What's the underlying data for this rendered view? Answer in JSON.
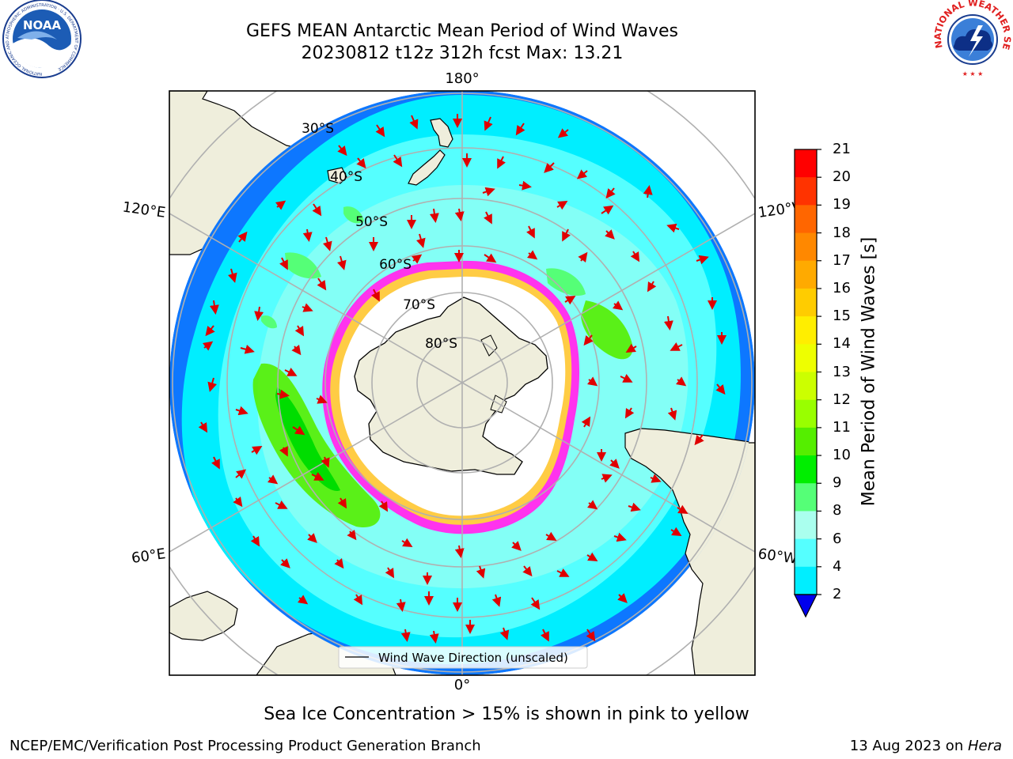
{
  "title": {
    "line1": "GEFS MEAN Antarctic Mean Period of Wind Waves",
    "line2": "20230812 t12z 312h fcst   Max: 13.21"
  },
  "logos": {
    "left": "NOAA",
    "left_ring": "NATIONAL OCEANIC AND ATMOSPHERIC ADMINISTRATION · U.S. DEPARTMENT OF COMMERCE",
    "right_ring": "NATIONAL WEATHER SERVICE"
  },
  "map": {
    "longitude_labels": [
      "180°",
      "120°E",
      "120°W",
      "60°E",
      "60°W",
      "0°"
    ],
    "latitude_labels": [
      "30°S",
      "40°S",
      "50°S",
      "60°S",
      "70°S",
      "80°S"
    ],
    "legend_label": "Wind Wave Direction (unscaled)",
    "colors": {
      "land": "#efeedc",
      "sea_ice": "#ffffff",
      "ice_edge": [
        "#ff33ee",
        "#ff99dd",
        "#ffcc44"
      ],
      "arrows": "#e00000",
      "grid": "#b0b0b0"
    }
  },
  "colorbar": {
    "title": "Mean Period of Wind Waves [s]",
    "ticks": [
      "21",
      "20",
      "19",
      "18",
      "17",
      "16",
      "15",
      "14",
      "13",
      "12",
      "11",
      "10",
      "9",
      "8",
      "6",
      "4",
      "2"
    ],
    "colors": [
      "#ff0000",
      "#ff3300",
      "#ff6600",
      "#ff8800",
      "#ffaa00",
      "#ffcc00",
      "#ffee00",
      "#eeff00",
      "#ccff00",
      "#99ff00",
      "#55ee00",
      "#00ee00",
      "#55ff77",
      "#aaffee",
      "#55ffff",
      "#00eeff",
      "#0077ff"
    ],
    "extend_color": "#0000ee"
  },
  "footnote": "Sea Ice Concentration > 15% is shown in pink to yellow",
  "footer": {
    "left": "NCEP/EMC/Verification Post Processing Product Generation Branch",
    "right_date": "13 Aug 2023 on ",
    "right_host": "Hera"
  }
}
